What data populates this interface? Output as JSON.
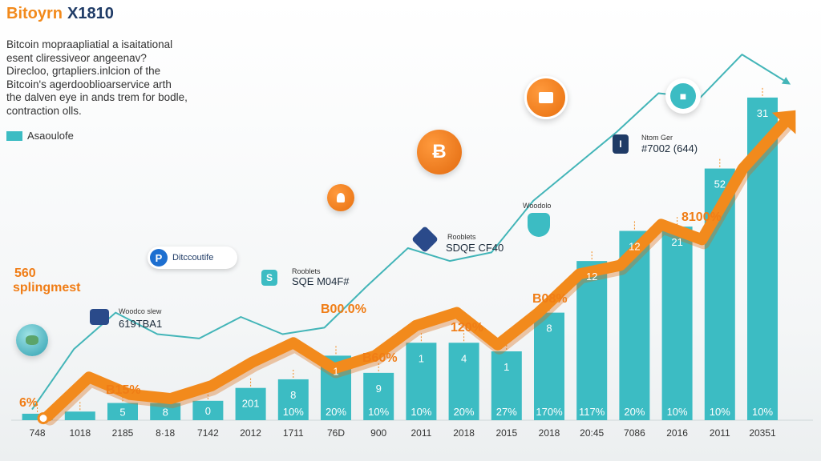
{
  "header": {
    "title_a": "Bitoyrn",
    "title_b": "X1810",
    "description": [
      "Bitcoin mopraapliatial a isaitational",
      "esent cliressiveor angeenav?",
      "Direcloo, grtapliers.inlcion of the",
      "Bitcoin's agerdooblioarservice arth",
      "the dalven eye in ands trem for bodle,",
      "contraction olls."
    ],
    "legend_label": "Asaoulofe"
  },
  "chart_data": {
    "type": "bar",
    "bar_color": "#3cbcc3",
    "trend_color": "#f28a1c",
    "line_color": "#43b5b8",
    "categories": [
      "748",
      "1018",
      "2185",
      "8·18",
      "7142",
      "2012",
      "1711",
      "76D",
      "900",
      "2011",
      "2018",
      "2015",
      "2018",
      "20:45",
      "7086",
      "2016",
      "2011",
      "20351"
    ],
    "values": [
      3,
      4,
      8,
      8,
      9,
      15,
      19,
      30,
      22,
      36,
      36,
      32,
      50,
      74,
      88,
      90,
      117,
      150
    ],
    "bar_labels": [
      "",
      "",
      "5",
      "8",
      "0",
      "201",
      "8",
      "1",
      "9",
      "1",
      "4",
      "1",
      "8",
      "12",
      "12",
      "21",
      "52",
      "31"
    ],
    "base_labels": [
      "",
      "",
      "",
      "",
      "",
      "",
      "10%",
      "20%",
      "10%",
      "10%",
      "20%",
      "27%",
      "170%",
      "117%",
      "20%",
      "10%",
      "10%",
      "10%"
    ],
    "trend_values": [
      2,
      20,
      12,
      10,
      16,
      27,
      36,
      24,
      30,
      44,
      50,
      35,
      50,
      68,
      72,
      91,
      84,
      117,
      138
    ],
    "line_values": [
      5,
      33,
      50,
      40,
      38,
      48,
      40,
      43,
      62,
      80,
      74,
      78,
      102,
      118,
      134,
      152,
      150,
      170,
      158
    ],
    "annotations": {
      "orange": [
        "6%",
        "B15%",
        "560",
        "splingmest",
        "B00.0%",
        "B60%",
        "120%",
        "B08%",
        "8100%"
      ],
      "dark": [
        "619TBA1",
        "SQE M04F#",
        "SDQE CF40",
        "#7002 (644)"
      ],
      "small": [
        "Woodco slew",
        "Rooblets",
        "Rooblets",
        "Woodolo",
        "Ntom Ger"
      ]
    },
    "ylim": [
      0,
      160
    ]
  },
  "badges": {
    "bitcoin_symbol": "Ƀ",
    "pill_letter": "P",
    "pill_text": "Ditccoutife",
    "square_letter_a": "S",
    "square_letter_b": "I"
  }
}
